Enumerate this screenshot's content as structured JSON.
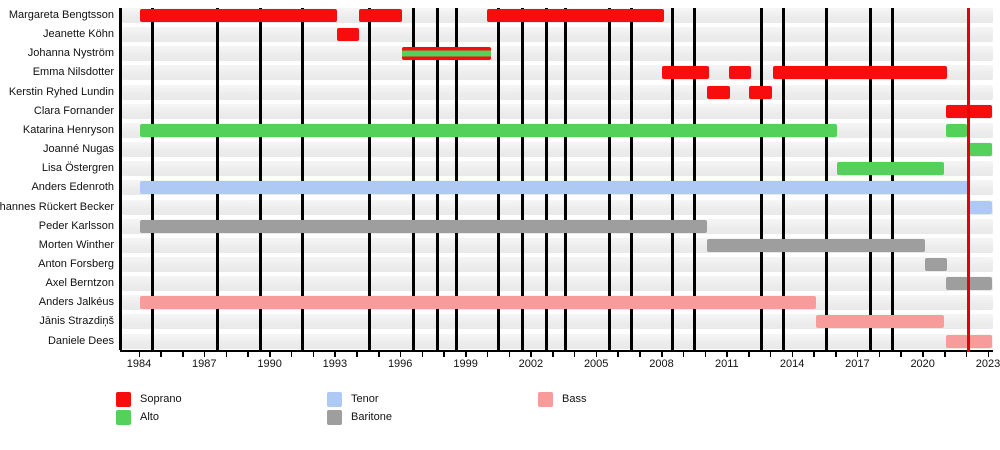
{
  "chart_data": {
    "type": "timeline-gantt",
    "title": "",
    "xlabel": "",
    "ylabel": "",
    "x_axis": {
      "min": 1984,
      "max": 2023,
      "tick_interval": 1,
      "label_interval": 3,
      "tick_labels": [
        "1984",
        "1987",
        "1990",
        "1993",
        "1996",
        "1999",
        "2002",
        "2005",
        "2008",
        "2011",
        "2014",
        "2017",
        "2020",
        "2023"
      ]
    },
    "colors": {
      "soprano": "#f70d0d",
      "alto": "#53d15a",
      "tenor": "#aecaf4",
      "baritone": "#9e9e9e",
      "bass": "#f89b9b",
      "row_band": "#efefef",
      "event_marker": "#000000",
      "current_marker": "#e60000",
      "axis": "#000000",
      "text": "#111111"
    },
    "members": [
      {
        "name": "Margareta Bengtsson",
        "voice": "soprano",
        "segments": [
          [
            1984.05,
            1993.1
          ],
          [
            1994.1,
            1996.1
          ],
          [
            2000.0,
            2008.1
          ]
        ]
      },
      {
        "name": "Jeanette Köhn",
        "voice": "soprano",
        "segments": [
          [
            1993.1,
            1994.1
          ]
        ]
      },
      {
        "name": "Johanna Nyström",
        "voice": "soprano+alto",
        "segments": [
          [
            1996.1,
            2000.15
          ]
        ]
      },
      {
        "name": "Emma Nilsdotter",
        "voice": "soprano",
        "segments": [
          [
            2008.0,
            2010.2
          ],
          [
            2011.1,
            2012.1
          ],
          [
            2013.1,
            2021.1
          ]
        ]
      },
      {
        "name": "Kerstin Ryhed Lundin",
        "voice": "soprano",
        "segments": [
          [
            2010.1,
            2011.15
          ],
          [
            2012.0,
            2013.1
          ]
        ]
      },
      {
        "name": "Clara Fornander",
        "voice": "soprano",
        "segments": [
          [
            2021.05,
            2023.2
          ]
        ]
      },
      {
        "name": "Katarina Henryson",
        "voice": "alto",
        "segments": [
          [
            1984.05,
            2016.05
          ],
          [
            2021.05,
            2022.05
          ]
        ]
      },
      {
        "name": "Joanné Nugas",
        "voice": "alto",
        "segments": [
          [
            2022.1,
            2023.2
          ]
        ]
      },
      {
        "name": "Lisa Östergren",
        "voice": "alto",
        "segments": [
          [
            2016.05,
            2021.0
          ]
        ]
      },
      {
        "name": "Anders Edenroth",
        "voice": "tenor",
        "segments": [
          [
            1984.05,
            2022.08
          ]
        ]
      },
      {
        "name": "Johannes Rückert Becker",
        "voice": "tenor",
        "segments": [
          [
            2022.1,
            2023.2
          ]
        ]
      },
      {
        "name": "Peder Karlsson",
        "voice": "baritone",
        "segments": [
          [
            1984.05,
            2010.1
          ]
        ]
      },
      {
        "name": "Morten Winther",
        "voice": "baritone",
        "segments": [
          [
            2010.1,
            2020.1
          ]
        ]
      },
      {
        "name": "Anton Forsberg",
        "voice": "baritone",
        "segments": [
          [
            2020.1,
            2021.1
          ]
        ]
      },
      {
        "name": "Axel Berntzon",
        "voice": "baritone",
        "segments": [
          [
            2021.05,
            2023.2
          ]
        ]
      },
      {
        "name": "Anders Jalkéus",
        "voice": "bass",
        "segments": [
          [
            1984.05,
            2015.1
          ]
        ]
      },
      {
        "name": "Jānis Strazdiņš",
        "voice": "bass",
        "segments": [
          [
            2015.1,
            2021.0
          ]
        ]
      },
      {
        "name": "Daniele Dees",
        "voice": "bass",
        "segments": [
          [
            2021.05,
            2023.2
          ]
        ]
      }
    ],
    "event_markers": [
      1984.6,
      1987.6,
      1989.6,
      1991.5,
      1994.6,
      1996.6,
      1997.7,
      1998.6,
      2000.5,
      2001.6,
      2002.7,
      2003.6,
      2005.6,
      2006.6,
      2008.5,
      2009.5,
      2012.6,
      2013.6,
      2015.6,
      2017.6,
      2018.6
    ],
    "current_marker": 2022.08,
    "legend_position": "bottom"
  },
  "legend": {
    "columns": [
      [
        {
          "label": "Soprano",
          "voice": "soprano"
        },
        {
          "label": "Alto",
          "voice": "alto"
        }
      ],
      [
        {
          "label": "Tenor",
          "voice": "tenor"
        },
        {
          "label": "Baritone",
          "voice": "baritone"
        }
      ],
      [
        {
          "label": "Bass",
          "voice": "bass"
        }
      ]
    ]
  }
}
